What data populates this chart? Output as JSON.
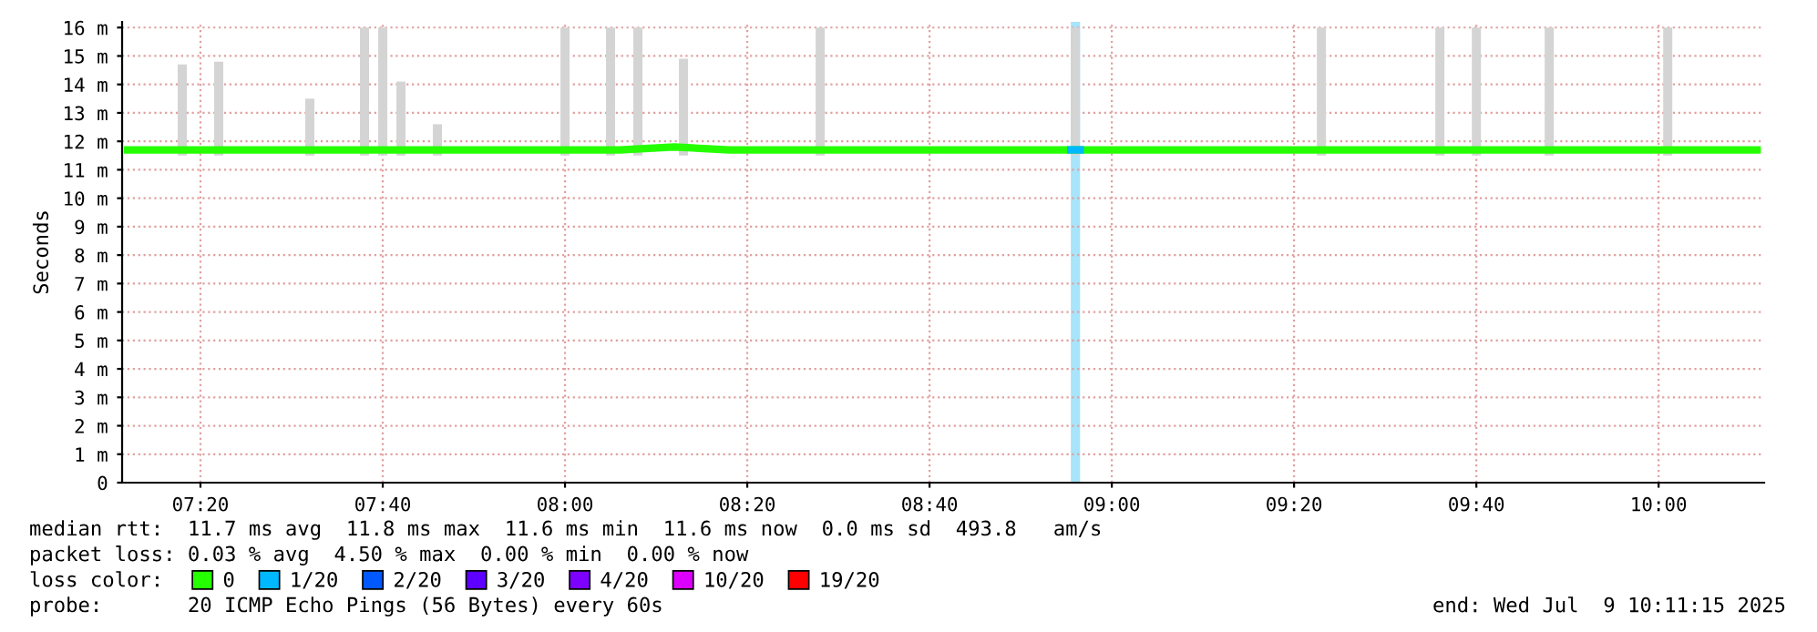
{
  "chart_data": {
    "type": "line",
    "ylabel": "Seconds",
    "xlim": [
      7.19,
      10.193
    ],
    "ylim": [
      0,
      16.2
    ],
    "xticks": [
      {
        "value": 7.3333,
        "label": "07:20"
      },
      {
        "value": 7.6667,
        "label": "07:40"
      },
      {
        "value": 8.0,
        "label": "08:00"
      },
      {
        "value": 8.3333,
        "label": "08:20"
      },
      {
        "value": 8.6667,
        "label": "08:40"
      },
      {
        "value": 9.0,
        "label": "09:00"
      },
      {
        "value": 9.3333,
        "label": "09:20"
      },
      {
        "value": 9.6667,
        "label": "09:40"
      },
      {
        "value": 10.0,
        "label": "10:00"
      }
    ],
    "yticks": [
      0,
      {
        "value": 1,
        "label": "1 m"
      },
      {
        "value": 2,
        "label": "2 m"
      },
      {
        "value": 3,
        "label": "3 m"
      },
      {
        "value": 4,
        "label": "4 m"
      },
      {
        "value": 5,
        "label": "5 m"
      },
      {
        "value": 6,
        "label": "6 m"
      },
      {
        "value": 7,
        "label": "7 m"
      },
      {
        "value": 8,
        "label": "8 m"
      },
      {
        "value": 9,
        "label": "9 m"
      },
      {
        "value": 10,
        "label": "10 m"
      },
      {
        "value": 11,
        "label": "11 m"
      },
      {
        "value": 12,
        "label": "12 m"
      },
      {
        "value": 13,
        "label": "13 m"
      },
      {
        "value": 14,
        "label": "14 m"
      },
      {
        "value": 15,
        "label": "15 m"
      },
      {
        "value": 16,
        "label": "16 m"
      }
    ],
    "grid": true,
    "legend": "bottom",
    "bands": [
      {
        "axis": "x",
        "from": 8.925,
        "to": 8.942,
        "color": "#a8e4fa"
      }
    ],
    "series": [
      {
        "type": "bar",
        "color": "#d4d4d4",
        "x": [
          7.3,
          7.3667,
          7.5333,
          7.6333,
          7.6667,
          7.7,
          7.7667,
          8.0,
          8.0833,
          8.1333,
          8.2167,
          8.4667,
          8.9333,
          9.3833,
          9.6,
          9.6667,
          9.8,
          10.0167
        ],
        "base": [
          11.5,
          11.5,
          11.5,
          11.5,
          11.5,
          11.5,
          11.5,
          11.5,
          11.5,
          11.5,
          11.5,
          11.5,
          11.5,
          11.5,
          11.5,
          11.5,
          11.5,
          11.5
        ],
        "values": [
          3.2,
          3.3,
          2.0,
          4.5,
          4.5,
          2.6,
          1.1,
          4.5,
          4.5,
          4.5,
          3.4,
          4.5,
          4.5,
          4.5,
          4.5,
          4.5,
          4.5,
          4.5
        ]
      },
      {
        "name": "0",
        "color": "#26ff00",
        "x": [
          7.2,
          7.3,
          7.4,
          7.5,
          7.6,
          7.7,
          7.8,
          7.9,
          8.0,
          8.1,
          8.2,
          8.3,
          8.4,
          8.5,
          8.6,
          8.7,
          8.8,
          8.9,
          8.925,
          8.942,
          9.0,
          9.1,
          9.2,
          9.3,
          9.4,
          9.5,
          9.6,
          9.7,
          9.8,
          9.9,
          10.0,
          10.1,
          10.18
        ],
        "values": [
          11.7,
          11.7,
          11.7,
          11.7,
          11.7,
          11.7,
          11.7,
          11.7,
          11.7,
          11.7,
          11.8,
          11.7,
          11.7,
          11.7,
          11.7,
          11.7,
          11.7,
          11.7,
          11.7,
          11.7,
          11.7,
          11.7,
          11.7,
          11.7,
          11.7,
          11.7,
          11.7,
          11.7,
          11.7,
          11.7,
          11.7,
          11.7,
          11.7
        ]
      },
      {
        "name": "1/20",
        "color": "#00b8ff",
        "x": [
          8.925,
          8.942
        ],
        "values": [
          11.7,
          11.7
        ]
      },
      {
        "name": "2/20",
        "color": "#0059ff"
      },
      {
        "name": "3/20",
        "color": "#5e00ff"
      },
      {
        "name": "4/20",
        "color": "#7e00ff"
      },
      {
        "name": "10/20",
        "color": "#dd00ff"
      },
      {
        "name": "19/20",
        "color": "#ff0000"
      }
    ],
    "annotations": [
      "median rtt:  11.7 ms avg  11.8 ms max  11.6 ms min  11.6 ms now  0.0 ms sd  493.8   am/s",
      "packet loss: 0.03 % avg  4.50 % max  0.00 % min  0.00 % now",
      "loss color:",
      "probe:       20 ICMP Echo Pings (56 Bytes) every 60s",
      "end: Wed Jul  9 10:11:15 2025"
    ]
  }
}
